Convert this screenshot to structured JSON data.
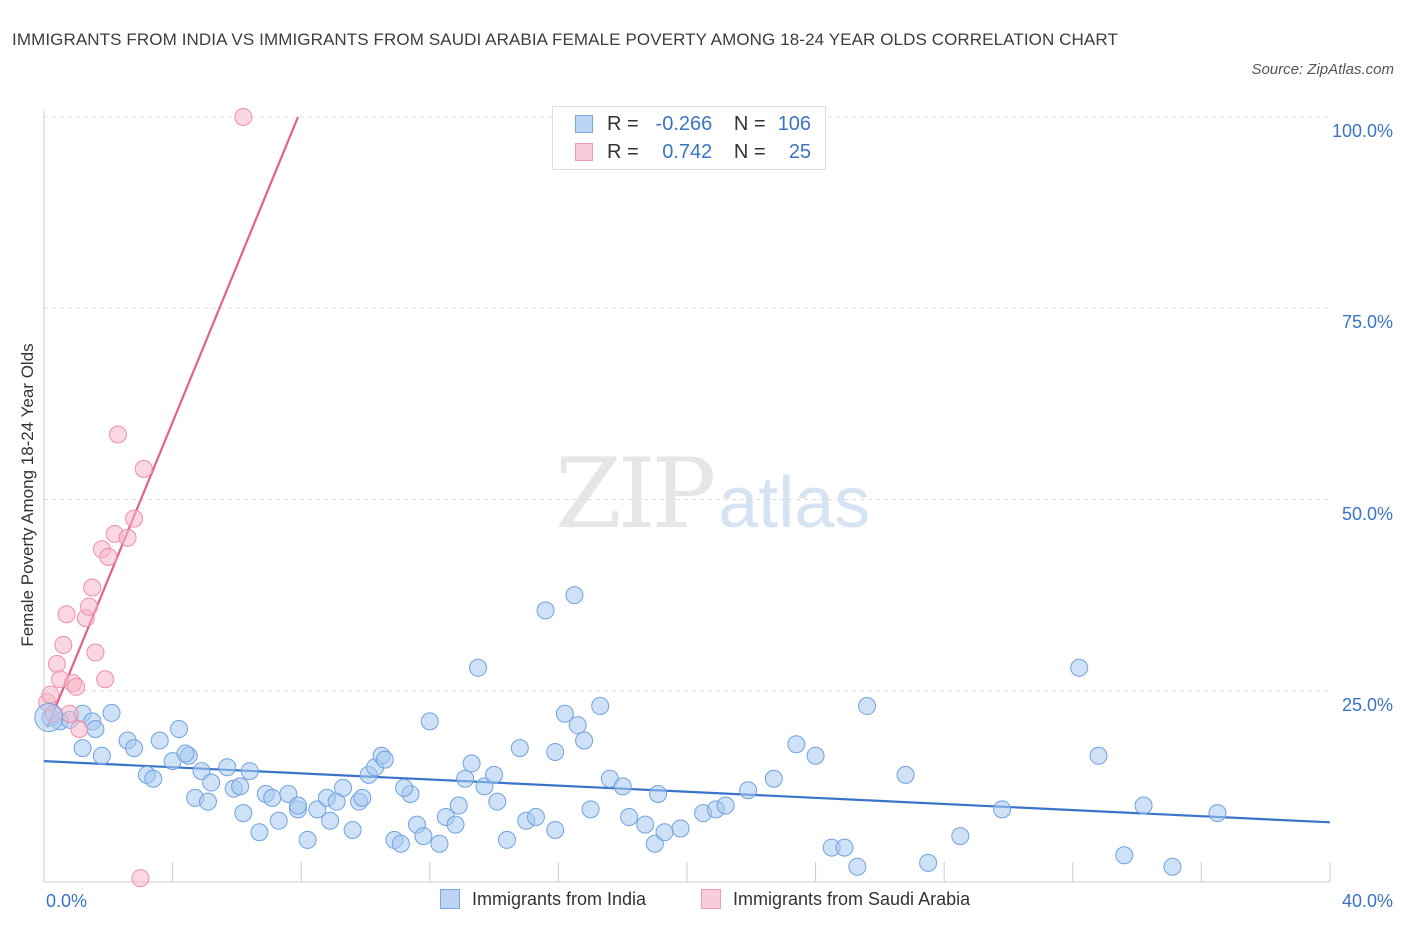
{
  "title": "IMMIGRANTS FROM INDIA VS IMMIGRANTS FROM SAUDI ARABIA FEMALE POVERTY AMONG 18-24 YEAR OLDS CORRELATION CHART",
  "source": "Source: ZipAtlas.com",
  "watermark": {
    "zip": "ZIP",
    "atlas": "atlas"
  },
  "legend_stats": [
    {
      "r_label": "R =",
      "r_value": "-0.266",
      "n_label": "N =",
      "n_value": "106",
      "color": "#a8c8f0"
    },
    {
      "r_label": "R =",
      "r_value": "0.742",
      "n_label": "N =",
      "n_value": "25",
      "color": "#f5b6c8"
    }
  ],
  "chart_data": {
    "type": "scatter",
    "title": "IMMIGRANTS FROM INDIA VS IMMIGRANTS FROM SAUDI ARABIA FEMALE POVERTY AMONG 18-24 YEAR OLDS CORRELATION CHART",
    "xlabel": "",
    "ylabel": "Female Poverty Among 18-24 Year Olds",
    "xlim": [
      0,
      40
    ],
    "ylim": [
      0,
      102
    ],
    "x_tick_labels": [
      "0.0%",
      "40.0%"
    ],
    "y_tick_labels": [
      "25.0%",
      "50.0%",
      "75.0%",
      "100.0%"
    ],
    "y_ticks": [
      25,
      50,
      75,
      100
    ],
    "grid": true,
    "legend_position": "bottom",
    "series": [
      {
        "name": "Immigrants from India",
        "color": "#6fa3e0",
        "fill": "#a8c8f0",
        "trend": {
          "x": [
            0,
            40
          ],
          "y": [
            15.8,
            7.8
          ],
          "color": "#3a74c8"
        },
        "points": [
          [
            0.2,
            21.5
          ],
          [
            0.5,
            21.0
          ],
          [
            0.8,
            21.2
          ],
          [
            1.2,
            22.0
          ],
          [
            1.5,
            21.0
          ],
          [
            2.1,
            22.1
          ],
          [
            2.6,
            18.5
          ],
          [
            2.8,
            17.5
          ],
          [
            1.2,
            17.5
          ],
          [
            1.8,
            16.5
          ],
          [
            1.6,
            20.0
          ],
          [
            3.6,
            18.5
          ],
          [
            4.2,
            20.0
          ],
          [
            3.2,
            14.0
          ],
          [
            3.4,
            13.5
          ],
          [
            4.0,
            15.8
          ],
          [
            4.5,
            16.5
          ],
          [
            4.4,
            16.8
          ],
          [
            4.9,
            14.5
          ],
          [
            5.2,
            13.0
          ],
          [
            4.7,
            11.0
          ],
          [
            5.1,
            10.5
          ],
          [
            5.7,
            15.0
          ],
          [
            5.9,
            12.2
          ],
          [
            6.1,
            12.5
          ],
          [
            6.4,
            14.5
          ],
          [
            6.7,
            6.5
          ],
          [
            6.9,
            11.5
          ],
          [
            7.1,
            11.0
          ],
          [
            7.3,
            8.0
          ],
          [
            7.6,
            11.5
          ],
          [
            7.9,
            9.5
          ],
          [
            8.2,
            5.5
          ],
          [
            8.5,
            9.5
          ],
          [
            8.8,
            11.0
          ],
          [
            9.1,
            10.5
          ],
          [
            9.3,
            12.3
          ],
          [
            9.6,
            6.8
          ],
          [
            9.8,
            10.5
          ],
          [
            10.1,
            14.0
          ],
          [
            10.3,
            15.0
          ],
          [
            10.5,
            16.5
          ],
          [
            10.6,
            16.0
          ],
          [
            10.9,
            5.5
          ],
          [
            11.1,
            5.0
          ],
          [
            11.4,
            11.5
          ],
          [
            11.6,
            7.5
          ],
          [
            11.8,
            6.0
          ],
          [
            12.0,
            21.0
          ],
          [
            12.3,
            5.0
          ],
          [
            12.5,
            8.5
          ],
          [
            12.8,
            7.5
          ],
          [
            13.1,
            13.5
          ],
          [
            13.3,
            15.5
          ],
          [
            13.5,
            28.0
          ],
          [
            13.7,
            12.5
          ],
          [
            14.0,
            14.0
          ],
          [
            14.4,
            5.5
          ],
          [
            14.8,
            17.5
          ],
          [
            15.0,
            8.0
          ],
          [
            15.3,
            8.5
          ],
          [
            15.6,
            35.5
          ],
          [
            15.9,
            17.0
          ],
          [
            16.2,
            22.0
          ],
          [
            16.5,
            37.5
          ],
          [
            16.6,
            20.5
          ],
          [
            16.8,
            18.5
          ],
          [
            17.3,
            23.0
          ],
          [
            17.6,
            13.5
          ],
          [
            18.0,
            12.5
          ],
          [
            18.2,
            8.5
          ],
          [
            18.7,
            7.5
          ],
          [
            19.0,
            5.0
          ],
          [
            19.3,
            6.5
          ],
          [
            19.8,
            7.0
          ],
          [
            20.5,
            9.0
          ],
          [
            20.9,
            9.5
          ],
          [
            21.2,
            10.0
          ],
          [
            21.9,
            12.0
          ],
          [
            22.7,
            13.5
          ],
          [
            23.4,
            18.0
          ],
          [
            24.0,
            16.5
          ],
          [
            24.5,
            4.5
          ],
          [
            24.9,
            4.5
          ],
          [
            25.6,
            23.0
          ],
          [
            25.3,
            2.0
          ],
          [
            26.8,
            14.0
          ],
          [
            27.5,
            2.5
          ],
          [
            28.5,
            6.0
          ],
          [
            29.8,
            9.5
          ],
          [
            32.2,
            28.0
          ],
          [
            32.8,
            16.5
          ],
          [
            33.6,
            3.5
          ],
          [
            34.2,
            10.0
          ],
          [
            35.1,
            2.0
          ],
          [
            36.5,
            9.0
          ],
          [
            12.9,
            10.0
          ],
          [
            7.9,
            10.0
          ],
          [
            17.0,
            9.5
          ],
          [
            19.1,
            11.5
          ],
          [
            14.1,
            10.5
          ],
          [
            6.2,
            9.0
          ],
          [
            8.9,
            8.0
          ],
          [
            11.2,
            12.3
          ],
          [
            9.9,
            11.0
          ],
          [
            15.9,
            6.8
          ]
        ]
      },
      {
        "name": "Immigrants from Saudi Arabia",
        "color": "#ef8fac",
        "fill": "#f5b6c8",
        "trend": {
          "x": [
            0.1,
            7.9
          ],
          "y": [
            20.2,
            100
          ],
          "color": "#e0628e"
        },
        "points": [
          [
            0.1,
            23.5
          ],
          [
            0.2,
            24.5
          ],
          [
            0.3,
            22.0
          ],
          [
            0.4,
            28.5
          ],
          [
            0.5,
            26.5
          ],
          [
            0.6,
            31.0
          ],
          [
            0.7,
            35.0
          ],
          [
            0.8,
            22.0
          ],
          [
            0.9,
            26.0
          ],
          [
            1.0,
            25.5
          ],
          [
            1.1,
            20.0
          ],
          [
            1.3,
            34.5
          ],
          [
            1.4,
            36.0
          ],
          [
            1.5,
            38.5
          ],
          [
            1.6,
            30.0
          ],
          [
            1.8,
            43.5
          ],
          [
            2.0,
            42.5
          ],
          [
            2.2,
            45.5
          ],
          [
            2.3,
            58.5
          ],
          [
            2.6,
            45.0
          ],
          [
            2.8,
            47.5
          ],
          [
            3.1,
            54.0
          ],
          [
            3.0,
            0.5
          ],
          [
            6.2,
            100.0
          ],
          [
            1.9,
            26.5
          ]
        ]
      }
    ]
  }
}
